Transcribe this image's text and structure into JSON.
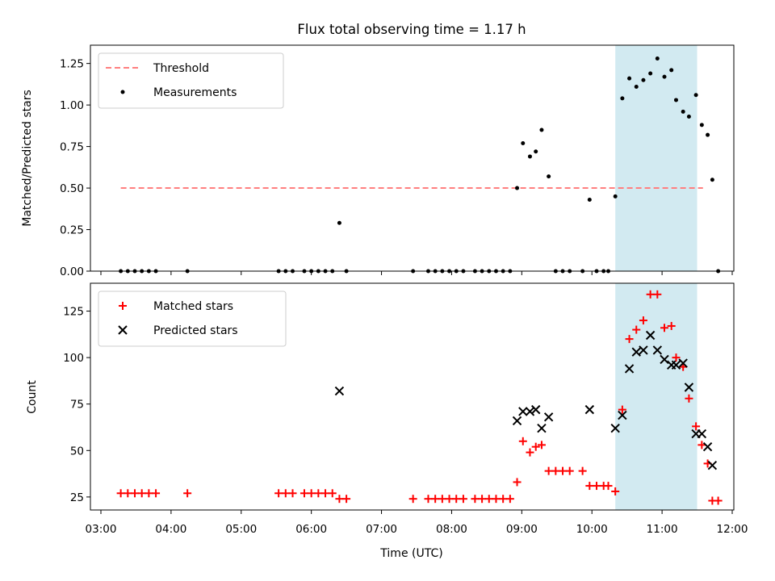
{
  "chart_data": [
    {
      "type": "scatter",
      "title": "Flux total observing time = 1.17 h",
      "xlabel": "",
      "ylabel": "Matched/Predicted stars",
      "ylim": [
        0,
        1.36
      ],
      "yticks": [
        "0.00",
        "0.25",
        "0.50",
        "0.75",
        "1.00",
        "1.25"
      ],
      "shared_x": "time",
      "legend": {
        "position": "top-left",
        "entries": [
          "Threshold",
          "Measurements"
        ]
      },
      "threshold": {
        "name": "Threshold",
        "value": 0.5,
        "x_start": "03:17",
        "x_end": "11:35",
        "color": "#ff7f7f",
        "style": "dashed"
      },
      "highlight": {
        "x_start": "10:20",
        "x_end": "11:30",
        "color": "#add8e6"
      },
      "series": [
        {
          "name": "Measurements",
          "color": "#000000",
          "marker": "dot",
          "points": [
            [
              "03:17",
              0
            ],
            [
              "03:23",
              0
            ],
            [
              "03:29",
              0
            ],
            [
              "03:35",
              0
            ],
            [
              "03:41",
              0
            ],
            [
              "03:47",
              0
            ],
            [
              "04:14",
              0
            ],
            [
              "05:32",
              0
            ],
            [
              "05:38",
              0
            ],
            [
              "05:44",
              0
            ],
            [
              "05:54",
              0
            ],
            [
              "06:00",
              0
            ],
            [
              "06:06",
              0
            ],
            [
              "06:12",
              0
            ],
            [
              "06:18",
              0
            ],
            [
              "06:24",
              0.29
            ],
            [
              "06:30",
              0
            ],
            [
              "07:27",
              0
            ],
            [
              "07:40",
              0
            ],
            [
              "07:46",
              0
            ],
            [
              "07:52",
              0
            ],
            [
              "07:58",
              0
            ],
            [
              "08:04",
              0
            ],
            [
              "08:10",
              0
            ],
            [
              "08:20",
              0
            ],
            [
              "08:26",
              0
            ],
            [
              "08:32",
              0
            ],
            [
              "08:38",
              0
            ],
            [
              "08:44",
              0
            ],
            [
              "08:50",
              0
            ],
            [
              "08:56",
              0.5
            ],
            [
              "09:01",
              0.77
            ],
            [
              "09:07",
              0.69
            ],
            [
              "09:12",
              0.72
            ],
            [
              "09:17",
              0.85
            ],
            [
              "09:23",
              0.57
            ],
            [
              "09:29",
              0
            ],
            [
              "09:35",
              0
            ],
            [
              "09:41",
              0
            ],
            [
              "09:52",
              0
            ],
            [
              "09:58",
              0.43
            ],
            [
              "10:04",
              0
            ],
            [
              "10:10",
              0
            ],
            [
              "10:14",
              0
            ],
            [
              "10:20",
              0.45
            ],
            [
              "10:26",
              1.04
            ],
            [
              "10:32",
              1.16
            ],
            [
              "10:38",
              1.11
            ],
            [
              "10:44",
              1.15
            ],
            [
              "10:50",
              1.19
            ],
            [
              "10:56",
              1.28
            ],
            [
              "11:02",
              1.17
            ],
            [
              "11:08",
              1.21
            ],
            [
              "11:12",
              1.03
            ],
            [
              "11:18",
              0.96
            ],
            [
              "11:23",
              0.93
            ],
            [
              "11:29",
              1.06
            ],
            [
              "11:34",
              0.88
            ],
            [
              "11:39",
              0.82
            ],
            [
              "11:43",
              0.55
            ],
            [
              "11:48",
              0
            ]
          ]
        }
      ]
    },
    {
      "type": "scatter",
      "title": "",
      "xlabel": "Time (UTC)",
      "ylabel": "Count",
      "ylim": [
        18,
        140
      ],
      "yticks": [
        "25",
        "50",
        "75",
        "100",
        "125"
      ],
      "xticks": [
        "03:00",
        "04:00",
        "05:00",
        "06:00",
        "07:00",
        "08:00",
        "09:00",
        "10:00",
        "11:00",
        "12:00"
      ],
      "legend": {
        "position": "top-left",
        "entries": [
          "Matched stars",
          "Predicted stars"
        ]
      },
      "highlight": {
        "x_start": "10:20",
        "x_end": "11:30",
        "color": "#add8e6"
      },
      "series": [
        {
          "name": "Matched stars",
          "color": "#ff0000",
          "marker": "plus",
          "points": [
            [
              "03:17",
              27
            ],
            [
              "03:23",
              27
            ],
            [
              "03:29",
              27
            ],
            [
              "03:35",
              27
            ],
            [
              "03:41",
              27
            ],
            [
              "03:47",
              27
            ],
            [
              "04:14",
              27
            ],
            [
              "05:32",
              27
            ],
            [
              "05:38",
              27
            ],
            [
              "05:44",
              27
            ],
            [
              "05:54",
              27
            ],
            [
              "06:00",
              27
            ],
            [
              "06:06",
              27
            ],
            [
              "06:12",
              27
            ],
            [
              "06:18",
              27
            ],
            [
              "06:24",
              24
            ],
            [
              "06:30",
              24
            ],
            [
              "07:27",
              24
            ],
            [
              "07:40",
              24
            ],
            [
              "07:46",
              24
            ],
            [
              "07:52",
              24
            ],
            [
              "07:58",
              24
            ],
            [
              "08:04",
              24
            ],
            [
              "08:10",
              24
            ],
            [
              "08:20",
              24
            ],
            [
              "08:26",
              24
            ],
            [
              "08:32",
              24
            ],
            [
              "08:38",
              24
            ],
            [
              "08:44",
              24
            ],
            [
              "08:50",
              24
            ],
            [
              "08:56",
              33
            ],
            [
              "09:01",
              55
            ],
            [
              "09:07",
              49
            ],
            [
              "09:12",
              52
            ],
            [
              "09:17",
              53
            ],
            [
              "09:23",
              39
            ],
            [
              "09:29",
              39
            ],
            [
              "09:35",
              39
            ],
            [
              "09:41",
              39
            ],
            [
              "09:52",
              39
            ],
            [
              "09:58",
              31
            ],
            [
              "10:04",
              31
            ],
            [
              "10:10",
              31
            ],
            [
              "10:14",
              31
            ],
            [
              "10:20",
              28
            ],
            [
              "10:26",
              72
            ],
            [
              "10:32",
              110
            ],
            [
              "10:38",
              115
            ],
            [
              "10:44",
              120
            ],
            [
              "10:50",
              134
            ],
            [
              "10:56",
              134
            ],
            [
              "11:02",
              116
            ],
            [
              "11:08",
              117
            ],
            [
              "11:12",
              100
            ],
            [
              "11:18",
              95
            ],
            [
              "11:23",
              78
            ],
            [
              "11:29",
              63
            ],
            [
              "11:34",
              53
            ],
            [
              "11:39",
              43
            ],
            [
              "11:43",
              23
            ],
            [
              "11:48",
              23
            ]
          ]
        },
        {
          "name": "Predicted stars",
          "color": "#000000",
          "marker": "x",
          "points": [
            [
              "06:24",
              82
            ],
            [
              "08:56",
              66
            ],
            [
              "09:01",
              71
            ],
            [
              "09:07",
              71
            ],
            [
              "09:12",
              72
            ],
            [
              "09:17",
              62
            ],
            [
              "09:23",
              68
            ],
            [
              "09:58",
              72
            ],
            [
              "10:20",
              62
            ],
            [
              "10:26",
              69
            ],
            [
              "10:32",
              94
            ],
            [
              "10:38",
              103
            ],
            [
              "10:44",
              104
            ],
            [
              "10:50",
              112
            ],
            [
              "10:56",
              104
            ],
            [
              "11:02",
              99
            ],
            [
              "11:08",
              96
            ],
            [
              "11:12",
              96
            ],
            [
              "11:18",
              97
            ],
            [
              "11:23",
              84
            ],
            [
              "11:29",
              59
            ],
            [
              "11:34",
              59
            ],
            [
              "11:39",
              52
            ],
            [
              "11:43",
              42
            ]
          ]
        }
      ]
    }
  ]
}
